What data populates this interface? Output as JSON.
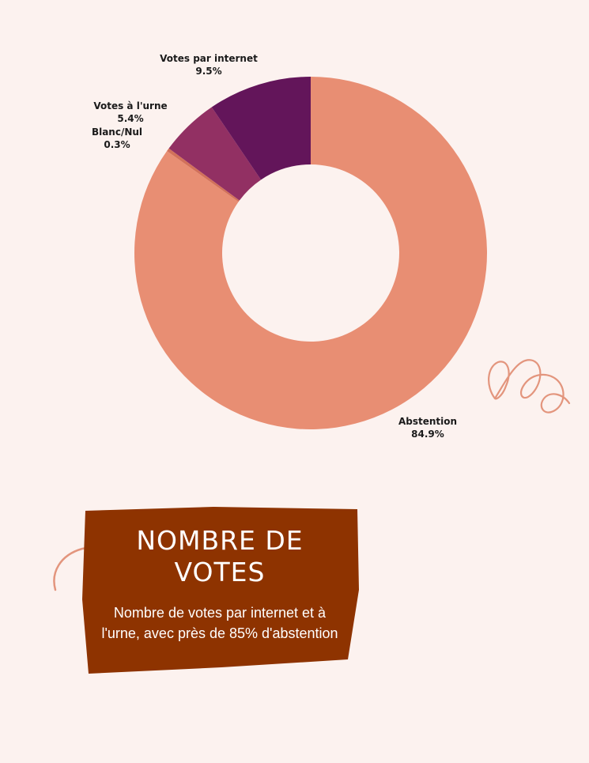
{
  "chart_data": {
    "type": "pie",
    "donut": true,
    "title": "",
    "slices": [
      {
        "label": "Abstention",
        "value": 84.9,
        "display": "84.9%",
        "color": "#e88e73"
      },
      {
        "label": "Blanc/Nul",
        "value": 0.3,
        "display": "0.3%",
        "color": "#d2715a"
      },
      {
        "label": "Votes à l'urne",
        "value": 5.4,
        "display": "5.4%",
        "color": "#923063"
      },
      {
        "label": "Votes par internet",
        "value": 9.5,
        "display": "9.5%",
        "color": "#63155a"
      }
    ]
  },
  "card": {
    "title_line1": "NOMBRE DE",
    "title_line2": "VOTES",
    "description": "Nombre de votes par internet et à l'urne, avec près de 85% d'abstention",
    "background_color": "#8e3300"
  },
  "colors": {
    "page_background": "#fcf2ef",
    "decoration": "#e3957d"
  }
}
